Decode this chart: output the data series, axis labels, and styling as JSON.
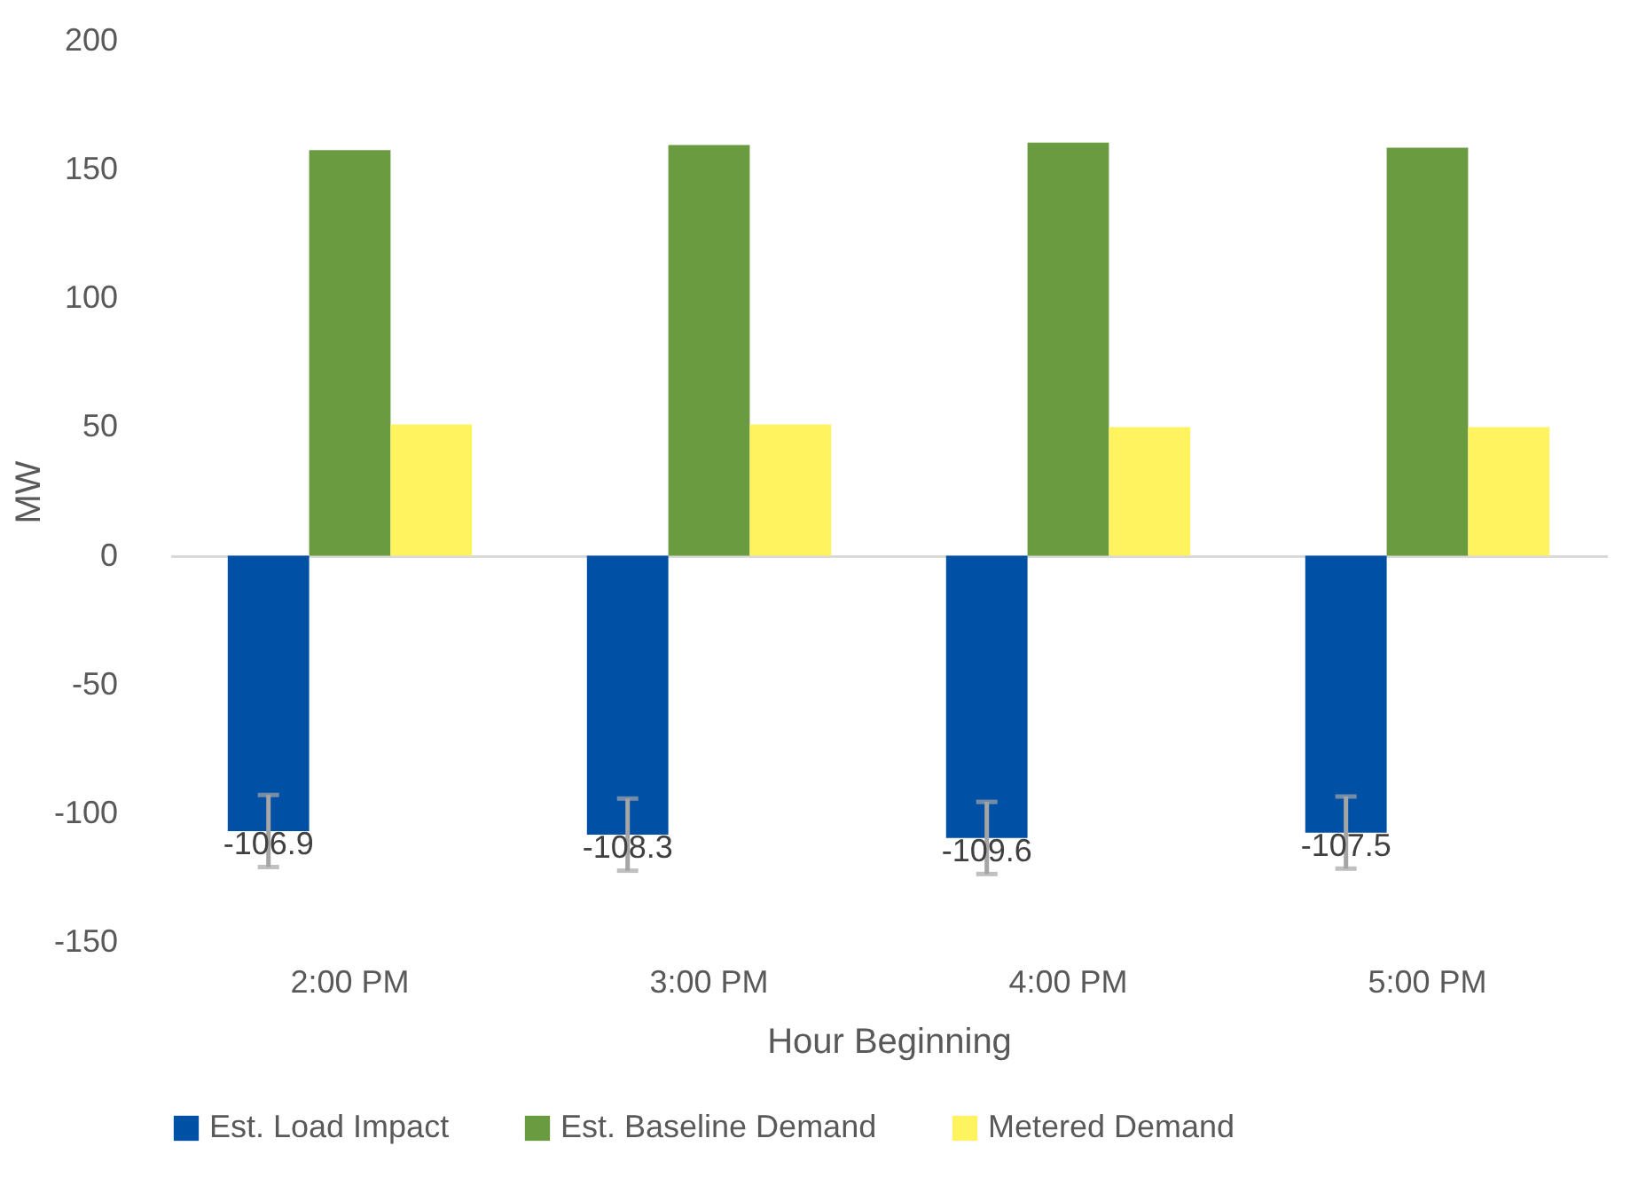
{
  "chart_data": {
    "type": "bar",
    "xlabel": "Hour Beginning",
    "ylabel": "MW",
    "categories": [
      "2:00 PM",
      "3:00 PM",
      "4:00 PM",
      "5:00 PM"
    ],
    "series": [
      {
        "name": "Est. Load Impact",
        "color": "#0051a5",
        "values": [
          -106.9,
          -108.3,
          -109.6,
          -107.5
        ],
        "errors": [
          14,
          14,
          14,
          14
        ],
        "value_labels": [
          "-106.9",
          "-108.3",
          "-109.6",
          "-107.5"
        ]
      },
      {
        "name": "Est. Baseline Demand",
        "color": "#6a9b41",
        "values": [
          157.5,
          159.5,
          160.5,
          158.5
        ]
      },
      {
        "name": "Metered Demand",
        "color": "#fff35f",
        "values": [
          51,
          51,
          50,
          50
        ]
      }
    ],
    "ylim": [
      -150,
      200
    ],
    "yticks": [
      -150,
      -100,
      -50,
      0,
      50,
      100,
      150,
      200
    ],
    "legend": "bottom"
  }
}
